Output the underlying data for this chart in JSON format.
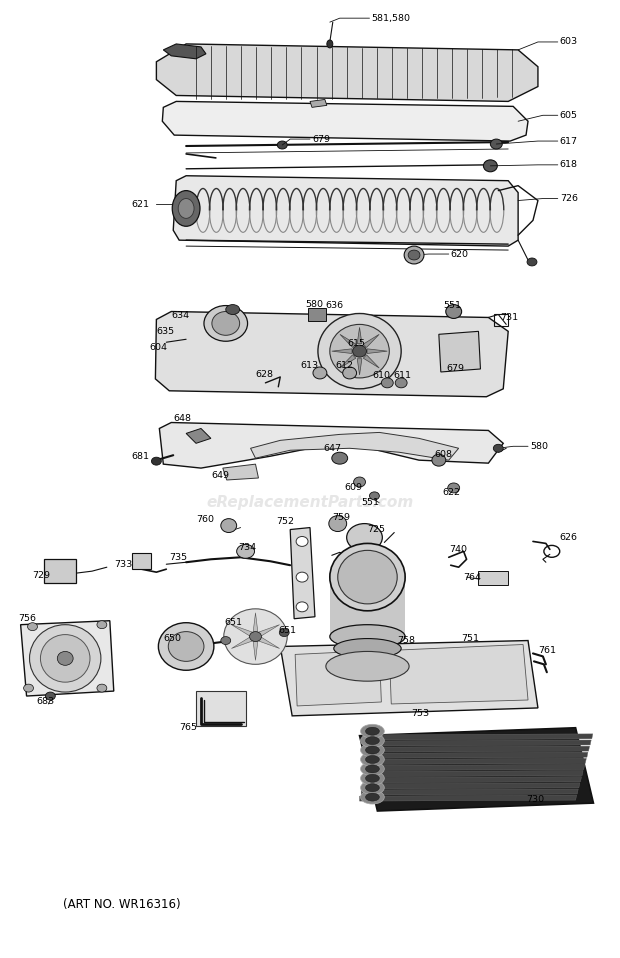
{
  "background_color": "#ffffff",
  "watermark": "eReplacementParts.com",
  "watermark_color": "#c8c8c8",
  "watermark_alpha": 0.45,
  "footer_text": "(ART NO. WR16316)",
  "footer_fontsize": 8.5,
  "fig_width": 6.2,
  "fig_height": 9.58,
  "dpi": 100,
  "label_fs": 6.8,
  "line_color": "#111111",
  "part_fill": "#e0e0e0",
  "dark_fill": "#222222"
}
